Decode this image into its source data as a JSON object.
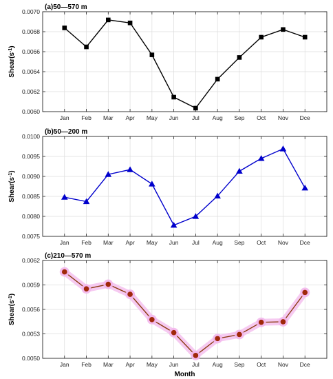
{
  "chart_data": [
    {
      "type": "line",
      "title": "(a)50—570 m",
      "ylabel": "Shear(s",
      "ylabel_sup": "-1",
      "ylabel_close": ")",
      "ylim": [
        0.006,
        0.007
      ],
      "yticks": [
        0.006,
        0.0062,
        0.0064,
        0.0066,
        0.0068,
        0.007
      ],
      "ytick_labels": [
        "0.0060",
        "0.0062",
        "0.0064",
        "0.0066",
        "0.0068",
        "0.0070"
      ],
      "grid": true,
      "marker": "square",
      "line_color": "#000000",
      "marker_color": "#000000",
      "categories": [
        "Jan",
        "Feb",
        "Mar",
        "Apr",
        "May",
        "Jun",
        "Jul",
        "Aug",
        "Sep",
        "Oct",
        "Nov",
        "Dce"
      ],
      "values": [
        0.006838,
        0.006648,
        0.006918,
        0.006888,
        0.006568,
        0.006145,
        0.006035,
        0.006325,
        0.006542,
        0.006745,
        0.006822,
        0.006745
      ]
    },
    {
      "type": "line",
      "title": "(b)50—200 m",
      "ylabel": "Shear(s",
      "ylabel_sup": "-1",
      "ylabel_close": ")",
      "ylim": [
        0.0075,
        0.01
      ],
      "yticks": [
        0.0075,
        0.008,
        0.0085,
        0.009,
        0.0095,
        0.01
      ],
      "ytick_labels": [
        "0.0075",
        "0.0080",
        "0.0085",
        "0.0090",
        "0.0095",
        "0.0100"
      ],
      "grid": true,
      "marker": "triangle",
      "line_color": "#0000cc",
      "marker_color": "#0000cc",
      "categories": [
        "Jan",
        "Feb",
        "Mar",
        "Apr",
        "May",
        "Jun",
        "Jul",
        "Aug",
        "Sep",
        "Oct",
        "Nov",
        "Dce"
      ],
      "values": [
        0.00848,
        0.00837,
        0.00905,
        0.00917,
        0.00881,
        0.00778,
        0.008,
        0.00851,
        0.00913,
        0.00945,
        0.00969,
        0.00871
      ]
    },
    {
      "type": "line",
      "title": "(c)210—570 m",
      "ylabel": "Shear(s",
      "ylabel_sup": "-1",
      "ylabel_close": ")",
      "xlabel": "Month",
      "ylim": [
        0.005,
        0.0062
      ],
      "yticks": [
        0.005,
        0.0053,
        0.0056,
        0.0059,
        0.0062
      ],
      "ytick_labels": [
        "0.0050",
        "0.0053",
        "0.0056",
        "0.0059",
        "0.0062"
      ],
      "grid": true,
      "marker": "circle",
      "line_color": "#8b3a10",
      "marker_color": "#a0280a",
      "marker_halo": "#f3b8ec",
      "categories": [
        "Jan",
        "Feb",
        "Mar",
        "Apr",
        "May",
        "Jun",
        "Jul",
        "Aug",
        "Sep",
        "Oct",
        "Nov",
        "Dce"
      ],
      "values": [
        0.00606,
        0.005852,
        0.005908,
        0.005785,
        0.005475,
        0.005315,
        0.005035,
        0.005242,
        0.005292,
        0.005442,
        0.005448,
        0.005808
      ]
    }
  ]
}
